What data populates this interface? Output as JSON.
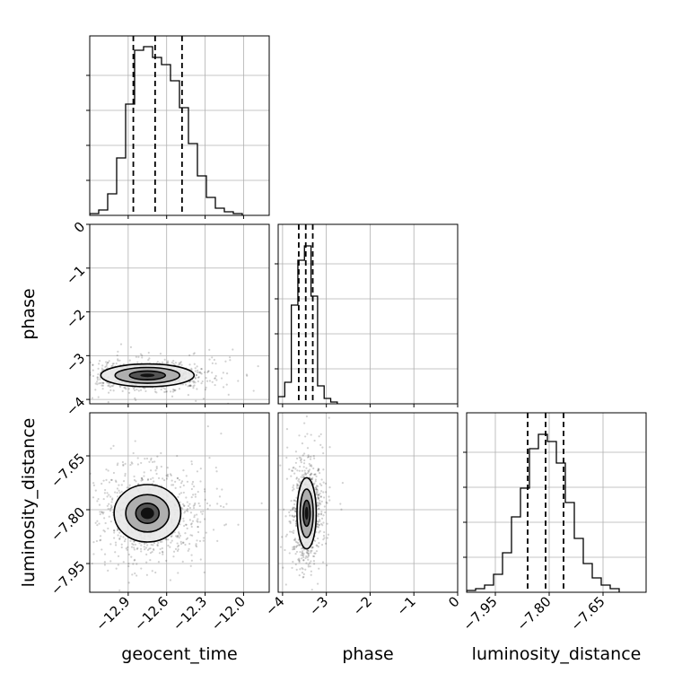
{
  "chart_data": {
    "type": "corner",
    "parameters": [
      "geocent_time",
      "phase",
      "luminosity_distance"
    ],
    "ranges": {
      "geocent_time": [
        -13.2,
        -11.8
      ],
      "phase": [
        -4.1,
        0
      ],
      "luminosity_distance": [
        -8.03,
        -7.53
      ]
    },
    "ticks": {
      "geocent_time": [
        -12.9,
        -12.6,
        -12.3,
        -12.0
      ],
      "phase": [
        -4,
        -3,
        -2,
        -1,
        0
      ],
      "luminosity_distance": [
        -7.95,
        -7.8,
        -7.65
      ]
    },
    "tick_labels": {
      "geocent_time": [
        "−12.9",
        "−12.6",
        "−12.3",
        "−12.0"
      ],
      "phase": [
        "−4",
        "−3",
        "−2",
        "−1",
        "0"
      ],
      "luminosity_distance": [
        "−7.95",
        "−7.80",
        "−7.65"
      ]
    },
    "axis_labels": {
      "x": [
        "geocent_time",
        "phase",
        "luminosity_distance"
      ],
      "y": [
        "phase",
        "luminosity_distance"
      ]
    },
    "quantiles": {
      "geocent_time": [
        -12.86,
        -12.69,
        -12.48
      ],
      "phase": [
        -3.63,
        -3.47,
        -3.31
      ],
      "luminosity_distance": [
        -7.86,
        -7.81,
        -7.76
      ]
    },
    "histograms": {
      "geocent_time": {
        "edges": [
          -13.2,
          -13.13,
          -13.06,
          -12.99,
          -12.92,
          -12.85,
          -12.78,
          -12.71,
          -12.64,
          -12.57,
          -12.5,
          -12.43,
          -12.36,
          -12.29,
          -12.22,
          -12.15,
          -12.08,
          -12.01
        ],
        "counts": [
          0.01,
          0.03,
          0.12,
          0.32,
          0.62,
          0.92,
          0.94,
          0.88,
          0.84,
          0.75,
          0.6,
          0.4,
          0.22,
          0.1,
          0.04,
          0.02,
          0.01
        ]
      },
      "phase": {
        "edges": [
          -4.1,
          -3.95,
          -3.8,
          -3.65,
          -3.5,
          -3.35,
          -3.2,
          -3.05,
          -2.9,
          -2.75
        ],
        "counts": [
          0.04,
          0.12,
          0.55,
          0.8,
          0.88,
          0.6,
          0.1,
          0.03,
          0.01
        ]
      },
      "luminosity_distance": {
        "edges": [
          -8.03,
          -8.005,
          -7.98,
          -7.955,
          -7.93,
          -7.905,
          -7.88,
          -7.855,
          -7.83,
          -7.805,
          -7.78,
          -7.755,
          -7.73,
          -7.705,
          -7.68,
          -7.655,
          -7.63,
          -7.605
        ],
        "counts": [
          0.01,
          0.02,
          0.04,
          0.1,
          0.22,
          0.42,
          0.58,
          0.8,
          0.88,
          0.84,
          0.72,
          0.5,
          0.3,
          0.16,
          0.08,
          0.04,
          0.02
        ]
      }
    },
    "joint": [
      {
        "x": "geocent_time",
        "y": "phase",
        "center": [
          -12.75,
          -3.45
        ],
        "sigma": [
          0.14,
          0.1
        ],
        "contour_levels": [
          1.0,
          1.8,
          2.6
        ]
      },
      {
        "x": "geocent_time",
        "y": "luminosity_distance",
        "center": [
          -12.75,
          -7.81
        ],
        "sigma": [
          0.13,
          0.04
        ],
        "contour_levels": [
          0.7,
          1.3,
          2.0
        ]
      },
      {
        "x": "phase",
        "y": "luminosity_distance",
        "center": [
          -3.45,
          -7.81
        ],
        "sigma": [
          0.1,
          0.045
        ],
        "contour_levels": [
          0.8,
          1.5,
          2.2
        ]
      }
    ],
    "grid": true
  }
}
